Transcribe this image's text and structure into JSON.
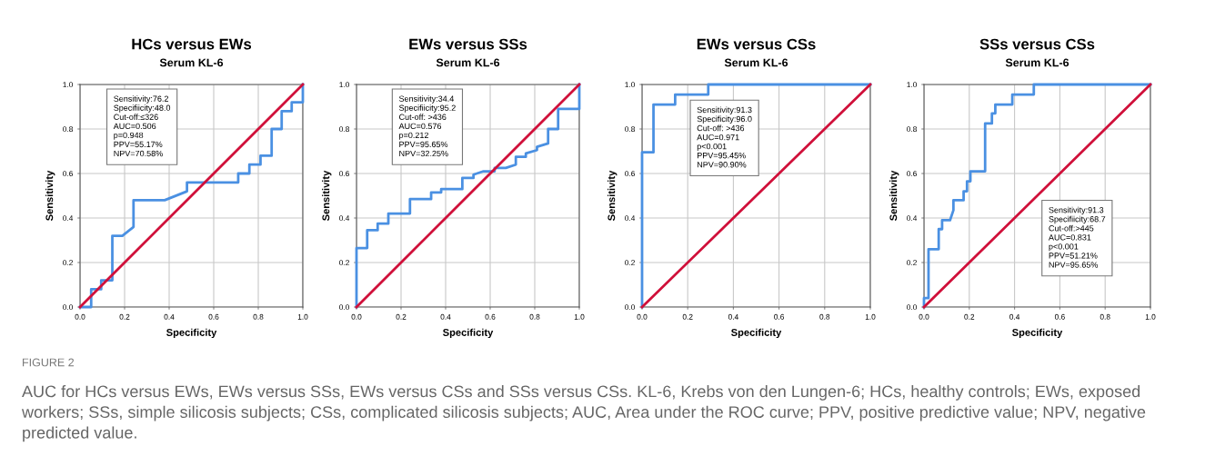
{
  "chart_data": [
    {
      "type": "line",
      "title": "HCs versus EWs",
      "subtitle": "Serum KL-6",
      "xlabel": "Specificity",
      "ylabel": "Sensitivity",
      "xlim": [
        0,
        1
      ],
      "ylim": [
        0,
        1
      ],
      "xticks": [
        {
          "value": 0,
          "label": "0.0"
        },
        {
          "value": 0.2,
          "label": "0.2"
        },
        {
          "value": 0.4,
          "label": "0.4"
        },
        {
          "value": 0.6,
          "label": "0.6"
        },
        {
          "value": 0.8,
          "label": "0.8"
        },
        {
          "value": 1,
          "label": "1.0"
        }
      ],
      "yticks": [
        {
          "value": 0,
          "label": "0.0"
        },
        {
          "value": 0.2,
          "label": "0.2"
        },
        {
          "value": 0.4,
          "label": "0.4"
        },
        {
          "value": 0.6,
          "label": "0.6"
        },
        {
          "value": 0.8,
          "label": "0.8"
        },
        {
          "value": 1,
          "label": "1.0"
        }
      ],
      "grid": true,
      "series": [
        {
          "color": "#4a90e2",
          "x": [
            0,
            0.05,
            0.05,
            0.095,
            0.095,
            0.145,
            0.145,
            0.19,
            0.24,
            0.24,
            0.38,
            0.48,
            0.48,
            0.71,
            0.71,
            0.76,
            0.76,
            0.81,
            0.81,
            0.86,
            0.86,
            0.905,
            0.905,
            0.95,
            0.95,
            1,
            1
          ],
          "values": [
            0,
            0,
            0.08,
            0.08,
            0.12,
            0.12,
            0.32,
            0.32,
            0.36,
            0.48,
            0.48,
            0.52,
            0.56,
            0.56,
            0.6,
            0.6,
            0.64,
            0.64,
            0.68,
            0.68,
            0.8,
            0.8,
            0.88,
            0.88,
            0.92,
            0.92,
            1
          ]
        },
        {
          "color": "#d0103a",
          "x": [
            0,
            1
          ],
          "values": [
            0,
            1
          ]
        }
      ],
      "annotations": [
        "Sensitivity:76.2\nSpecifiicity:48.0\nCut-off:≤326\nAUC=0.506\np=0.948\nPPV=55.17%\nNPV=70.58%"
      ]
    },
    {
      "type": "line",
      "title": "EWs versus SSs",
      "subtitle": "Serum KL-6",
      "xlabel": "Specificity",
      "ylabel": "Sensitivity",
      "xlim": [
        0,
        1
      ],
      "ylim": [
        0,
        1
      ],
      "xticks": [
        {
          "value": 0,
          "label": "0.0"
        },
        {
          "value": 0.2,
          "label": "0.2"
        },
        {
          "value": 0.4,
          "label": "0.4"
        },
        {
          "value": 0.6,
          "label": "0.6"
        },
        {
          "value": 0.8,
          "label": "0.8"
        },
        {
          "value": 1,
          "label": "1.0"
        }
      ],
      "yticks": [
        {
          "value": 0,
          "label": "0.0"
        },
        {
          "value": 0.2,
          "label": "0.2"
        },
        {
          "value": 0.4,
          "label": "0.4"
        },
        {
          "value": 0.6,
          "label": "0.6"
        },
        {
          "value": 0.8,
          "label": "0.8"
        },
        {
          "value": 1,
          "label": "1.0"
        }
      ],
      "grid": true,
      "series": [
        {
          "color": "#4a90e2",
          "x": [
            0,
            0,
            0.048,
            0.048,
            0.095,
            0.095,
            0.143,
            0.143,
            0.24,
            0.24,
            0.335,
            0.335,
            0.38,
            0.38,
            0.475,
            0.475,
            0.525,
            0.525,
            0.57,
            0.62,
            0.62,
            0.67,
            0.715,
            0.715,
            0.76,
            0.76,
            0.81,
            0.81,
            0.86,
            0.86,
            0.905,
            0.905,
            1,
            1
          ],
          "values": [
            0,
            0.265,
            0.265,
            0.345,
            0.345,
            0.375,
            0.375,
            0.42,
            0.42,
            0.485,
            0.485,
            0.515,
            0.515,
            0.53,
            0.53,
            0.58,
            0.58,
            0.595,
            0.61,
            0.61,
            0.625,
            0.625,
            0.64,
            0.675,
            0.675,
            0.69,
            0.705,
            0.72,
            0.735,
            0.8,
            0.8,
            0.89,
            0.89,
            1
          ]
        },
        {
          "color": "#d0103a",
          "x": [
            0,
            1
          ],
          "values": [
            0,
            1
          ]
        }
      ],
      "annotations": [
        "Sensitivity:34.4\nSpecifiicity:95.2\nCut-off: >436\nAUC=0.576\np=0.212\nPPV=95.65%\nNPV=32.25%"
      ]
    },
    {
      "type": "line",
      "title": "EWs versus CSs",
      "subtitle": "Serum KL-6",
      "xlabel": "Specificity",
      "ylabel": "Sensitivity",
      "xlim": [
        0,
        1
      ],
      "ylim": [
        0,
        1
      ],
      "xticks": [
        {
          "value": 0,
          "label": "0.0"
        },
        {
          "value": 0.2,
          "label": "0.2"
        },
        {
          "value": 0.4,
          "label": "0.4"
        },
        {
          "value": 0.6,
          "label": "0.6"
        },
        {
          "value": 0.8,
          "label": "0.8"
        },
        {
          "value": 1,
          "label": "1.0"
        }
      ],
      "yticks": [
        {
          "value": 0,
          "label": "0.0"
        },
        {
          "value": 0.2,
          "label": "0.2"
        },
        {
          "value": 0.4,
          "label": "0.4"
        },
        {
          "value": 0.6,
          "label": "0.6"
        },
        {
          "value": 0.8,
          "label": "0.8"
        },
        {
          "value": 1,
          "label": "1.0"
        }
      ],
      "grid": true,
      "series": [
        {
          "color": "#4a90e2",
          "x": [
            0,
            0,
            0.05,
            0.05,
            0.145,
            0.145,
            0.29,
            0.29,
            1
          ],
          "values": [
            0,
            0.695,
            0.695,
            0.91,
            0.91,
            0.955,
            0.955,
            1,
            1
          ]
        },
        {
          "color": "#d0103a",
          "x": [
            0,
            1
          ],
          "values": [
            0,
            1
          ]
        }
      ],
      "annotations": [
        "Sensitivity:91.3\nSpecificity:96.0\nCut-off: >436\nAUC=0.971\np<0.001\nPPV=95.45%\nNPV=90.90%"
      ]
    },
    {
      "type": "line",
      "title": "SSs versus CSs",
      "subtitle": "Serum KL-6",
      "xlabel": "Specificity",
      "ylabel": "Sensitivity",
      "xlim": [
        0,
        1
      ],
      "ylim": [
        0,
        1
      ],
      "xticks": [
        {
          "value": 0,
          "label": "0.0"
        },
        {
          "value": 0.2,
          "label": "0.2"
        },
        {
          "value": 0.4,
          "label": "0.4"
        },
        {
          "value": 0.6,
          "label": "0.6"
        },
        {
          "value": 0.8,
          "label": "0.8"
        },
        {
          "value": 1,
          "label": "1.0"
        }
      ],
      "yticks": [
        {
          "value": 0,
          "label": "0.0"
        },
        {
          "value": 0.2,
          "label": "0.2"
        },
        {
          "value": 0.4,
          "label": "0.4"
        },
        {
          "value": 0.6,
          "label": "0.6"
        },
        {
          "value": 0.8,
          "label": "0.8"
        },
        {
          "value": 1,
          "label": "1.0"
        }
      ],
      "grid": true,
      "series": [
        {
          "color": "#4a90e2",
          "x": [
            0,
            0,
            0.02,
            0.02,
            0.065,
            0.065,
            0.08,
            0.08,
            0.115,
            0.13,
            0.13,
            0.175,
            0.175,
            0.19,
            0.19,
            0.205,
            0.205,
            0.27,
            0.27,
            0.3,
            0.3,
            0.315,
            0.315,
            0.39,
            0.39,
            0.485,
            0.485,
            1
          ],
          "values": [
            0,
            0.04,
            0.04,
            0.26,
            0.26,
            0.35,
            0.35,
            0.39,
            0.39,
            0.435,
            0.48,
            0.48,
            0.52,
            0.52,
            0.565,
            0.565,
            0.61,
            0.61,
            0.825,
            0.825,
            0.87,
            0.87,
            0.91,
            0.91,
            0.955,
            0.955,
            1,
            1
          ]
        },
        {
          "color": "#d0103a",
          "x": [
            0,
            1
          ],
          "values": [
            0,
            1
          ]
        }
      ],
      "annotations": [
        "Sensitivity:91.3\nSpecifiicity:68.7\nCut-off:>445\nAUC=0.831\np<0.001\nPPV=51.21%\nNPV=95.65%",
        "FIGURE 2",
        "AUC for HCs versus EWs, EWs versus SSs, EWs versus CSs and SSs versus CSs. KL-6, Krebs von den Lungen-6; HCs, healthy controls; EWs, exposed workers; SSs, simple silicosis subjects; CSs, complicated silicosis subjects; AUC, Area under the ROC curve; PPV, positive predictive value; NPV, negative predicted value."
      ]
    }
  ]
}
